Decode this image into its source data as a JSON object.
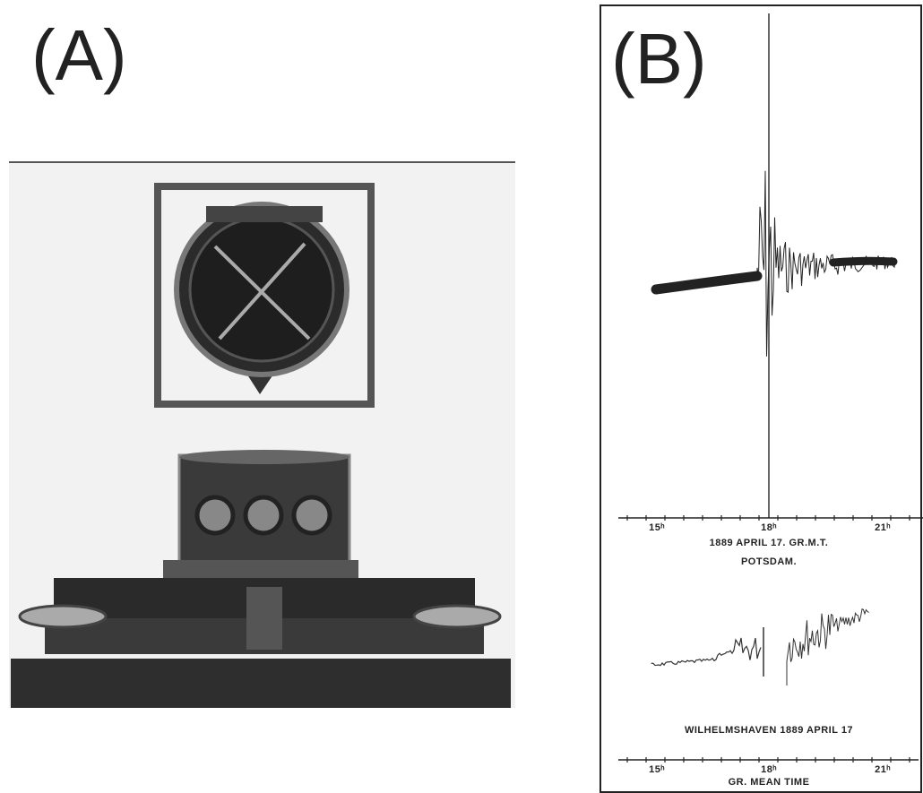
{
  "panel_a": {
    "label": "(A)"
  },
  "panel_b": {
    "label": "(B)",
    "potsdam": {
      "tick_labels": [
        "15ʰ",
        "18ʰ",
        "21ʰ"
      ],
      "date": "1889 APRIL 17. GR.M.T.",
      "station": "POTSDAM."
    },
    "wilhelmshaven": {
      "caption": "WILHELMSHAVEN 1889 APRIL 17",
      "tick_labels": [
        "15ʰ",
        "18ʰ",
        "21ʰ"
      ],
      "axis_label": "GR. MEAN TIME"
    }
  }
}
